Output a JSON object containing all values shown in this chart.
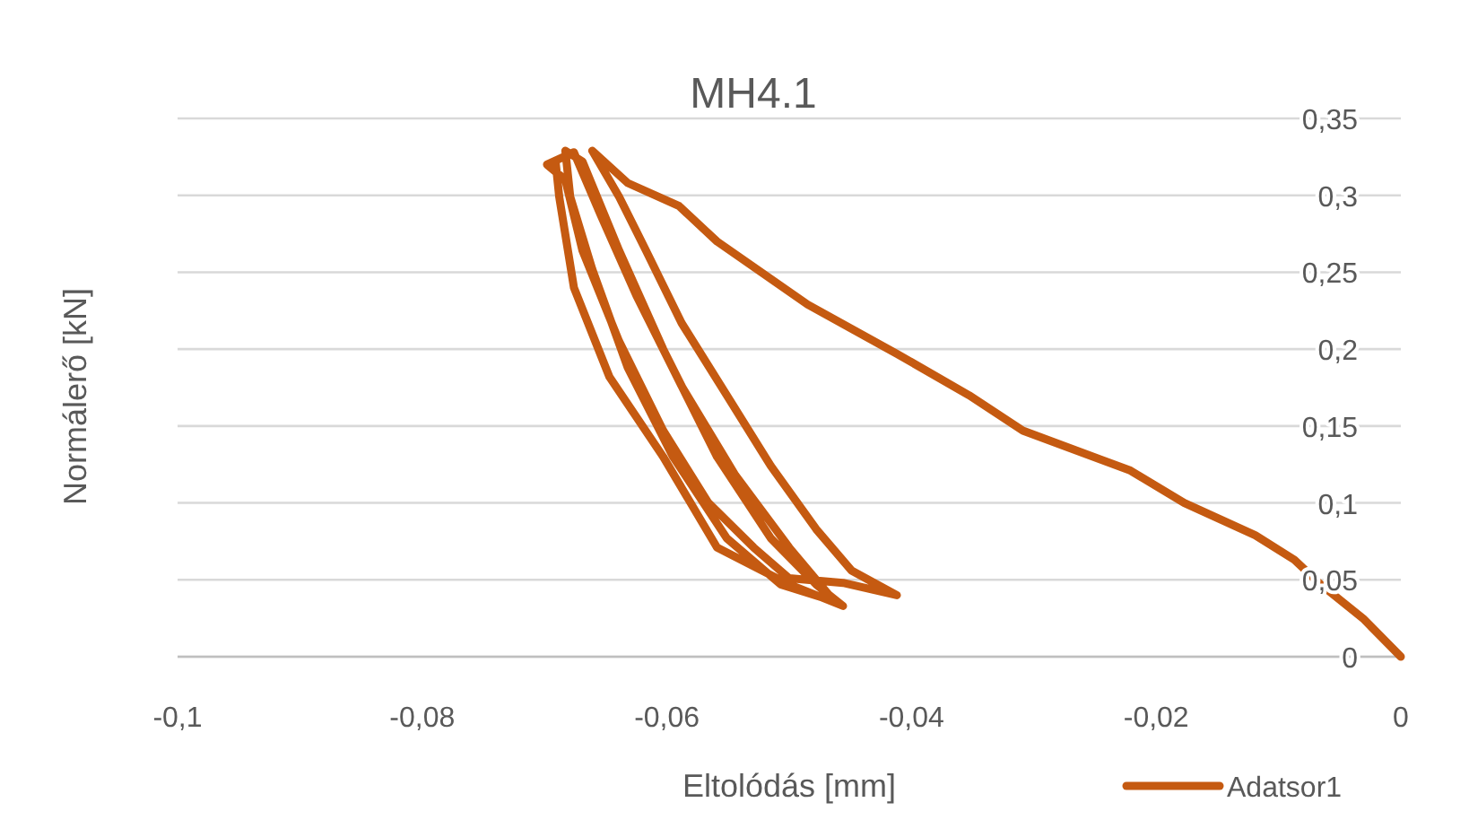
{
  "chart_data": {
    "type": "line",
    "title": "MH4.1",
    "xlabel": "Eltolódás  [mm]",
    "ylabel": "Normálerő [kN]",
    "xlim": [
      -0.1,
      0
    ],
    "ylim": [
      0,
      0.35
    ],
    "xticks": [
      {
        "value": -0.1,
        "label": "-0,1"
      },
      {
        "value": -0.08,
        "label": "-0,08"
      },
      {
        "value": -0.06,
        "label": "-0,06"
      },
      {
        "value": -0.04,
        "label": "-0,04"
      },
      {
        "value": -0.02,
        "label": "-0,02"
      },
      0
    ],
    "yticks": [
      0,
      {
        "value": 0.05,
        "label": "0,05"
      },
      {
        "value": 0.1,
        "label": "0,1"
      },
      {
        "value": 0.15,
        "label": "0,15"
      },
      {
        "value": 0.2,
        "label": "0,2"
      },
      {
        "value": 0.25,
        "label": "0,25"
      },
      {
        "value": 0.3,
        "label": "0,3"
      },
      {
        "value": 0.35,
        "label": "0,35"
      }
    ],
    "grid": "y",
    "legend": "bottom right",
    "marker": "none",
    "line_style": "solid",
    "series": [
      {
        "name": "Adatsor1",
        "color": "#c55a11",
        "x": [
          0,
          -0.0031,
          -0.0067,
          -0.0087,
          -0.0119,
          -0.0177,
          -0.0221,
          -0.0309,
          -0.0353,
          -0.0412,
          -0.0485,
          -0.0559,
          -0.059,
          -0.0632,
          -0.0661,
          -0.0639,
          -0.0617,
          -0.0588,
          -0.0551,
          -0.0515,
          -0.0478,
          -0.0449,
          -0.0412,
          -0.0456,
          -0.05,
          -0.0529,
          -0.0566,
          -0.0603,
          -0.0639,
          -0.0669,
          -0.0683,
          -0.0698,
          -0.0676,
          -0.0654,
          -0.0625,
          -0.0588,
          -0.0544,
          -0.05,
          -0.0463,
          -0.0507,
          -0.0551,
          -0.0595,
          -0.0632,
          -0.0661,
          -0.0679,
          -0.0683,
          -0.0669,
          -0.0639,
          -0.0603,
          -0.0559,
          -0.0515,
          -0.0478,
          -0.0456,
          -0.05,
          -0.0559,
          -0.0603,
          -0.0647,
          -0.0676,
          -0.0688,
          -0.0691
        ],
        "values": [
          0,
          0.025,
          0.048,
          0.063,
          0.079,
          0.1,
          0.121,
          0.147,
          0.17,
          0.197,
          0.229,
          0.27,
          0.293,
          0.308,
          0.329,
          0.299,
          0.264,
          0.217,
          0.17,
          0.124,
          0.083,
          0.056,
          0.04,
          0.048,
          0.051,
          0.071,
          0.1,
          0.147,
          0.205,
          0.264,
          0.31,
          0.32,
          0.328,
          0.287,
          0.235,
          0.176,
          0.118,
          0.071,
          0.036,
          0.047,
          0.077,
          0.13,
          0.188,
          0.252,
          0.299,
          0.329,
          0.322,
          0.264,
          0.2,
          0.13,
          0.077,
          0.047,
          0.033,
          0.047,
          0.071,
          0.13,
          0.182,
          0.24,
          0.299,
          0.322
        ]
      }
    ]
  }
}
